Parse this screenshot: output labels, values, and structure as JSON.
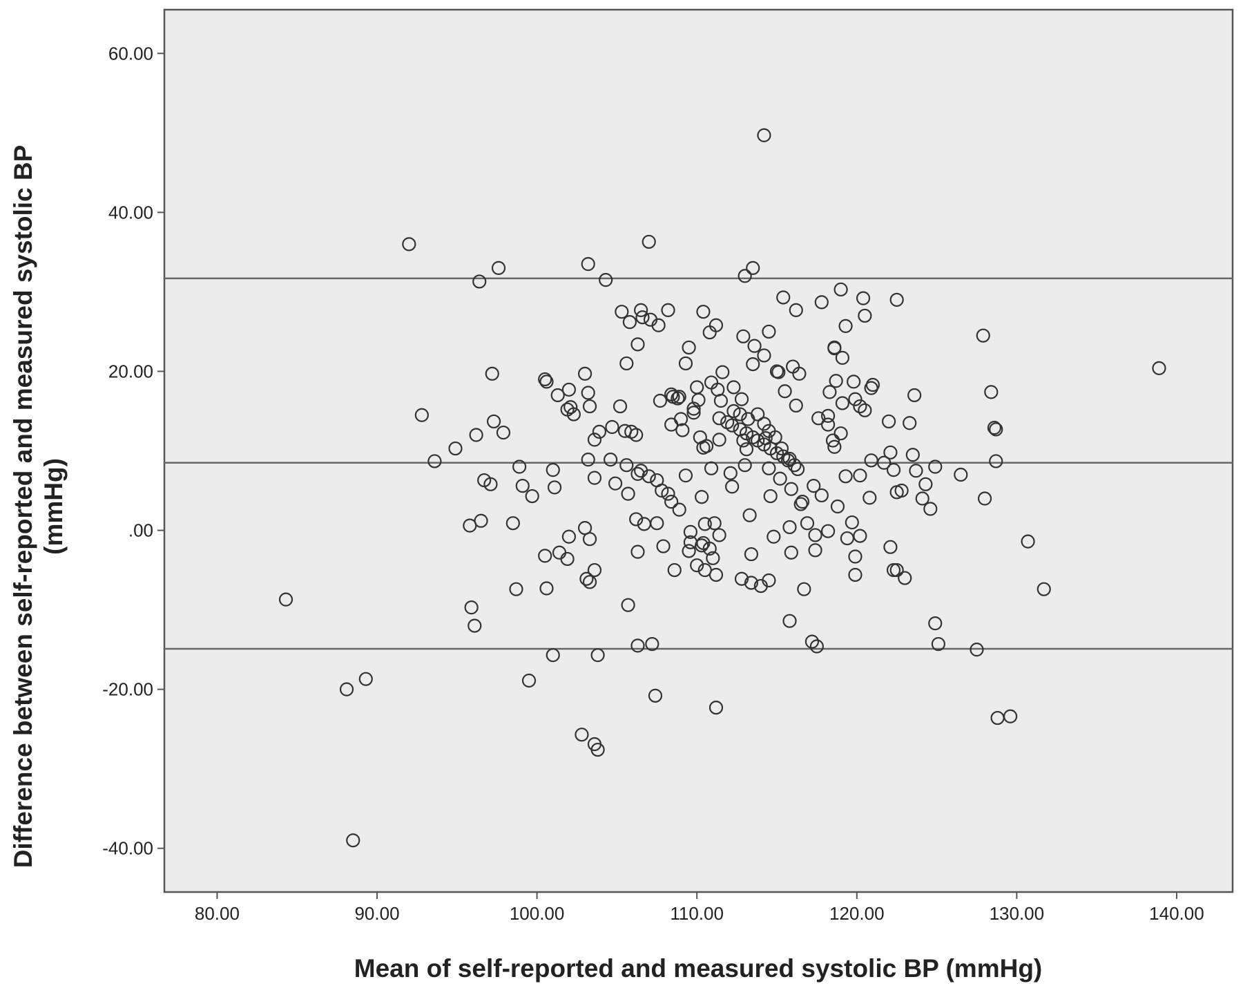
{
  "chart_data": {
    "type": "scatter",
    "xlabel": "Mean of self-reported and measured systolic BP (mmHg)",
    "ylabel_line1": "Difference between self-reported and measured systolic BP",
    "ylabel_line2": "(mmHg)",
    "xlim": [
      76.7,
      143.5
    ],
    "ylim": [
      -45.5,
      65.5
    ],
    "x_ticks": [
      80,
      90,
      100,
      110,
      120,
      130,
      140
    ],
    "x_tick_labels": [
      "80.00",
      "90.00",
      "100.00",
      "110.00",
      "120.00",
      "130.00",
      "140.00"
    ],
    "y_ticks": [
      60,
      40,
      20,
      0,
      -20,
      -40
    ],
    "y_tick_labels": [
      "60.00",
      "40.00",
      "20.00",
      ".00",
      "-20.00",
      "-40.00"
    ],
    "reference_lines": [
      31.7,
      8.5,
      -14.9
    ],
    "grid": false,
    "background": "#ececec",
    "marker": "open-circle",
    "marker_color": "#333333",
    "points": [
      [
        114.2,
        49.7
      ],
      [
        92.0,
        36.0
      ],
      [
        107.0,
        36.3
      ],
      [
        97.6,
        33.0
      ],
      [
        103.2,
        33.5
      ],
      [
        113.5,
        33.0
      ],
      [
        113.0,
        32.0
      ],
      [
        104.3,
        31.5
      ],
      [
        96.4,
        31.3
      ],
      [
        115.4,
        29.3
      ],
      [
        117.8,
        28.7
      ],
      [
        119.0,
        30.3
      ],
      [
        120.4,
        29.2
      ],
      [
        122.5,
        29.0
      ],
      [
        106.5,
        27.7
      ],
      [
        108.2,
        27.7
      ],
      [
        110.4,
        27.5
      ],
      [
        116.2,
        27.7
      ],
      [
        120.5,
        27.0
      ],
      [
        105.3,
        27.5
      ],
      [
        107.1,
        26.5
      ],
      [
        106.6,
        26.8
      ],
      [
        105.8,
        26.2
      ],
      [
        107.6,
        25.8
      ],
      [
        111.2,
        25.8
      ],
      [
        110.8,
        24.9
      ],
      [
        114.5,
        25.0
      ],
      [
        119.3,
        25.7
      ],
      [
        112.9,
        24.4
      ],
      [
        113.6,
        23.2
      ],
      [
        114.2,
        22.0
      ],
      [
        106.3,
        23.4
      ],
      [
        109.5,
        23.0
      ],
      [
        118.6,
        22.9
      ],
      [
        119.1,
        21.7
      ],
      [
        127.9,
        24.5
      ],
      [
        105.6,
        21.0
      ],
      [
        109.3,
        21.0
      ],
      [
        113.5,
        20.9
      ],
      [
        116.0,
        20.6
      ],
      [
        111.6,
        19.9
      ],
      [
        115.1,
        19.9
      ],
      [
        116.4,
        19.7
      ],
      [
        97.2,
        19.7
      ],
      [
        103.0,
        19.7
      ],
      [
        138.9,
        20.4
      ],
      [
        100.5,
        19.0
      ],
      [
        100.6,
        18.7
      ],
      [
        110.0,
        18.0
      ],
      [
        110.9,
        18.6
      ],
      [
        111.3,
        17.7
      ],
      [
        112.8,
        16.5
      ],
      [
        118.3,
        17.4
      ],
      [
        118.7,
        18.8
      ],
      [
        119.8,
        18.7
      ],
      [
        121.0,
        18.3
      ],
      [
        120.9,
        17.9
      ],
      [
        102.0,
        17.7
      ],
      [
        101.3,
        17.0
      ],
      [
        103.2,
        17.3
      ],
      [
        108.4,
        17.1
      ],
      [
        108.8,
        16.6
      ],
      [
        107.7,
        16.3
      ],
      [
        110.1,
        16.4
      ],
      [
        123.6,
        17.0
      ],
      [
        128.4,
        17.4
      ],
      [
        119.1,
        16.0
      ],
      [
        119.9,
        16.5
      ],
      [
        120.2,
        15.6
      ],
      [
        120.5,
        15.1
      ],
      [
        116.2,
        15.7
      ],
      [
        117.6,
        14.1
      ],
      [
        118.2,
        14.4
      ],
      [
        102.1,
        15.5
      ],
      [
        103.3,
        15.6
      ],
      [
        105.2,
        15.6
      ],
      [
        101.9,
        15.2
      ],
      [
        102.3,
        14.6
      ],
      [
        109.0,
        14.0
      ],
      [
        111.4,
        14.1
      ],
      [
        111.9,
        13.6
      ],
      [
        112.2,
        13.2
      ],
      [
        112.7,
        12.7
      ],
      [
        113.1,
        12.2
      ],
      [
        113.5,
        11.7
      ],
      [
        113.8,
        11.3
      ],
      [
        114.2,
        10.8
      ],
      [
        114.6,
        10.3
      ],
      [
        115.0,
        9.7
      ],
      [
        115.4,
        9.3
      ],
      [
        115.7,
        8.8
      ],
      [
        116.3,
        7.7
      ],
      [
        113.8,
        14.6
      ],
      [
        114.2,
        13.4
      ],
      [
        114.5,
        12.5
      ],
      [
        114.9,
        11.7
      ],
      [
        115.3,
        10.3
      ],
      [
        115.8,
        9.0
      ],
      [
        116.1,
        8.2
      ],
      [
        96.2,
        12.0
      ],
      [
        92.8,
        14.5
      ],
      [
        97.3,
        13.7
      ],
      [
        97.9,
        12.3
      ],
      [
        103.9,
        12.4
      ],
      [
        104.7,
        13.0
      ],
      [
        105.9,
        12.4
      ],
      [
        106.2,
        12.0
      ],
      [
        108.4,
        13.3
      ],
      [
        109.1,
        12.6
      ],
      [
        110.2,
        11.7
      ],
      [
        111.4,
        11.4
      ],
      [
        112.9,
        11.3
      ],
      [
        114.3,
        11.6
      ],
      [
        118.2,
        13.3
      ],
      [
        119.0,
        12.2
      ],
      [
        118.5,
        11.3
      ],
      [
        118.6,
        10.5
      ],
      [
        122.0,
        13.7
      ],
      [
        123.3,
        13.5
      ],
      [
        128.6,
        12.9
      ],
      [
        128.7,
        12.7
      ],
      [
        122.1,
        9.8
      ],
      [
        123.5,
        9.5
      ],
      [
        110.6,
        10.6
      ],
      [
        110.4,
        10.4
      ],
      [
        103.6,
        11.4
      ],
      [
        94.9,
        10.3
      ],
      [
        93.6,
        8.7
      ],
      [
        98.9,
        8.0
      ],
      [
        101.0,
        7.6
      ],
      [
        103.2,
        8.9
      ],
      [
        105.6,
        8.2
      ],
      [
        106.5,
        7.5
      ],
      [
        106.3,
        7.1
      ],
      [
        107.5,
        6.3
      ],
      [
        109.3,
        6.9
      ],
      [
        110.9,
        7.8
      ],
      [
        112.1,
        7.2
      ],
      [
        113.0,
        8.2
      ],
      [
        114.5,
        7.8
      ],
      [
        115.2,
        6.5
      ],
      [
        117.3,
        5.6
      ],
      [
        119.3,
        6.8
      ],
      [
        120.2,
        6.9
      ],
      [
        120.9,
        8.8
      ],
      [
        121.7,
        8.5
      ],
      [
        122.3,
        7.6
      ],
      [
        123.7,
        7.5
      ],
      [
        124.9,
        8.0
      ],
      [
        126.5,
        7.0
      ],
      [
        128.7,
        8.7
      ],
      [
        96.7,
        6.3
      ],
      [
        97.1,
        5.8
      ],
      [
        99.1,
        5.6
      ],
      [
        99.7,
        4.3
      ],
      [
        101.1,
        5.4
      ],
      [
        103.6,
        6.6
      ],
      [
        104.9,
        5.9
      ],
      [
        105.7,
        4.6
      ],
      [
        107.8,
        5.0
      ],
      [
        108.2,
        4.6
      ],
      [
        108.4,
        3.6
      ],
      [
        108.9,
        2.6
      ],
      [
        110.3,
        4.2
      ],
      [
        112.2,
        5.5
      ],
      [
        114.6,
        4.3
      ],
      [
        115.9,
        5.2
      ],
      [
        116.5,
        3.3
      ],
      [
        117.8,
        4.4
      ],
      [
        118.8,
        3.0
      ],
      [
        120.8,
        4.1
      ],
      [
        122.5,
        4.8
      ],
      [
        124.1,
        4.0
      ],
      [
        124.3,
        5.8
      ],
      [
        124.6,
        2.7
      ],
      [
        128.0,
        4.0
      ],
      [
        95.8,
        0.6
      ],
      [
        96.5,
        1.2
      ],
      [
        98.5,
        0.9
      ],
      [
        103.0,
        0.3
      ],
      [
        106.2,
        1.4
      ],
      [
        106.7,
        0.8
      ],
      [
        107.5,
        0.9
      ],
      [
        109.6,
        -0.2
      ],
      [
        110.5,
        0.8
      ],
      [
        111.1,
        0.9
      ],
      [
        113.3,
        1.9
      ],
      [
        114.8,
        -0.8
      ],
      [
        115.8,
        0.4
      ],
      [
        116.9,
        0.9
      ],
      [
        117.4,
        -0.6
      ],
      [
        118.2,
        -0.1
      ],
      [
        119.7,
        1.0
      ],
      [
        120.2,
        -0.7
      ],
      [
        102.0,
        -0.8
      ],
      [
        103.3,
        -1.1
      ],
      [
        100.5,
        -3.2
      ],
      [
        101.4,
        -2.8
      ],
      [
        101.9,
        -3.6
      ],
      [
        106.3,
        -2.7
      ],
      [
        107.9,
        -2.0
      ],
      [
        109.6,
        -1.5
      ],
      [
        110.3,
        -1.9
      ],
      [
        110.8,
        -2.3
      ],
      [
        111.0,
        -3.5
      ],
      [
        113.4,
        -3.0
      ],
      [
        115.9,
        -2.8
      ],
      [
        117.4,
        -2.5
      ],
      [
        119.4,
        -1.0
      ],
      [
        122.1,
        -2.1
      ],
      [
        130.7,
        -1.4
      ],
      [
        119.9,
        -3.3
      ],
      [
        109.5,
        -2.6
      ],
      [
        110.0,
        -4.4
      ],
      [
        103.6,
        -5.0
      ],
      [
        103.1,
        -6.1
      ],
      [
        103.3,
        -6.5
      ],
      [
        108.6,
        -5.0
      ],
      [
        110.5,
        -5.0
      ],
      [
        111.2,
        -5.6
      ],
      [
        112.8,
        -6.1
      ],
      [
        113.4,
        -6.6
      ],
      [
        114.0,
        -7.0
      ],
      [
        114.5,
        -6.3
      ],
      [
        116.7,
        -7.4
      ],
      [
        119.9,
        -5.6
      ],
      [
        122.3,
        -5.0
      ],
      [
        122.5,
        -5.0
      ],
      [
        123.0,
        -6.0
      ],
      [
        98.7,
        -7.4
      ],
      [
        100.6,
        -7.3
      ],
      [
        131.7,
        -7.4
      ],
      [
        84.3,
        -8.7
      ],
      [
        95.9,
        -9.7
      ],
      [
        96.1,
        -12.0
      ],
      [
        105.7,
        -9.4
      ],
      [
        115.8,
        -11.4
      ],
      [
        124.9,
        -11.7
      ],
      [
        106.3,
        -14.5
      ],
      [
        107.2,
        -14.3
      ],
      [
        101.0,
        -15.7
      ],
      [
        103.8,
        -15.7
      ],
      [
        117.2,
        -14.0
      ],
      [
        117.5,
        -14.6
      ],
      [
        125.1,
        -14.3
      ],
      [
        127.5,
        -15.0
      ],
      [
        99.5,
        -18.9
      ],
      [
        89.3,
        -18.7
      ],
      [
        88.1,
        -20.0
      ],
      [
        107.4,
        -20.8
      ],
      [
        111.2,
        -22.3
      ],
      [
        128.8,
        -23.6
      ],
      [
        129.6,
        -23.4
      ],
      [
        102.8,
        -25.7
      ],
      [
        103.6,
        -26.9
      ],
      [
        103.8,
        -27.6
      ],
      [
        88.5,
        -39.0
      ],
      [
        108.9,
        16.8
      ],
      [
        109.8,
        15.3
      ],
      [
        111.5,
        16.3
      ],
      [
        112.3,
        15.0
      ],
      [
        112.7,
        14.6
      ],
      [
        113.2,
        14.0
      ],
      [
        115.5,
        17.5
      ],
      [
        115.0,
        20.0
      ],
      [
        118.6,
        23.0
      ],
      [
        112.3,
        18.0
      ],
      [
        122.8,
        5.0
      ],
      [
        111.4,
        -0.6
      ],
      [
        110.4,
        -1.6
      ],
      [
        116.6,
        3.6
      ],
      [
        105.5,
        12.5
      ],
      [
        104.6,
        8.9
      ],
      [
        107.0,
        6.8
      ],
      [
        108.5,
        16.8
      ],
      [
        109.8,
        14.8
      ],
      [
        113.1,
        10.2
      ]
    ]
  }
}
